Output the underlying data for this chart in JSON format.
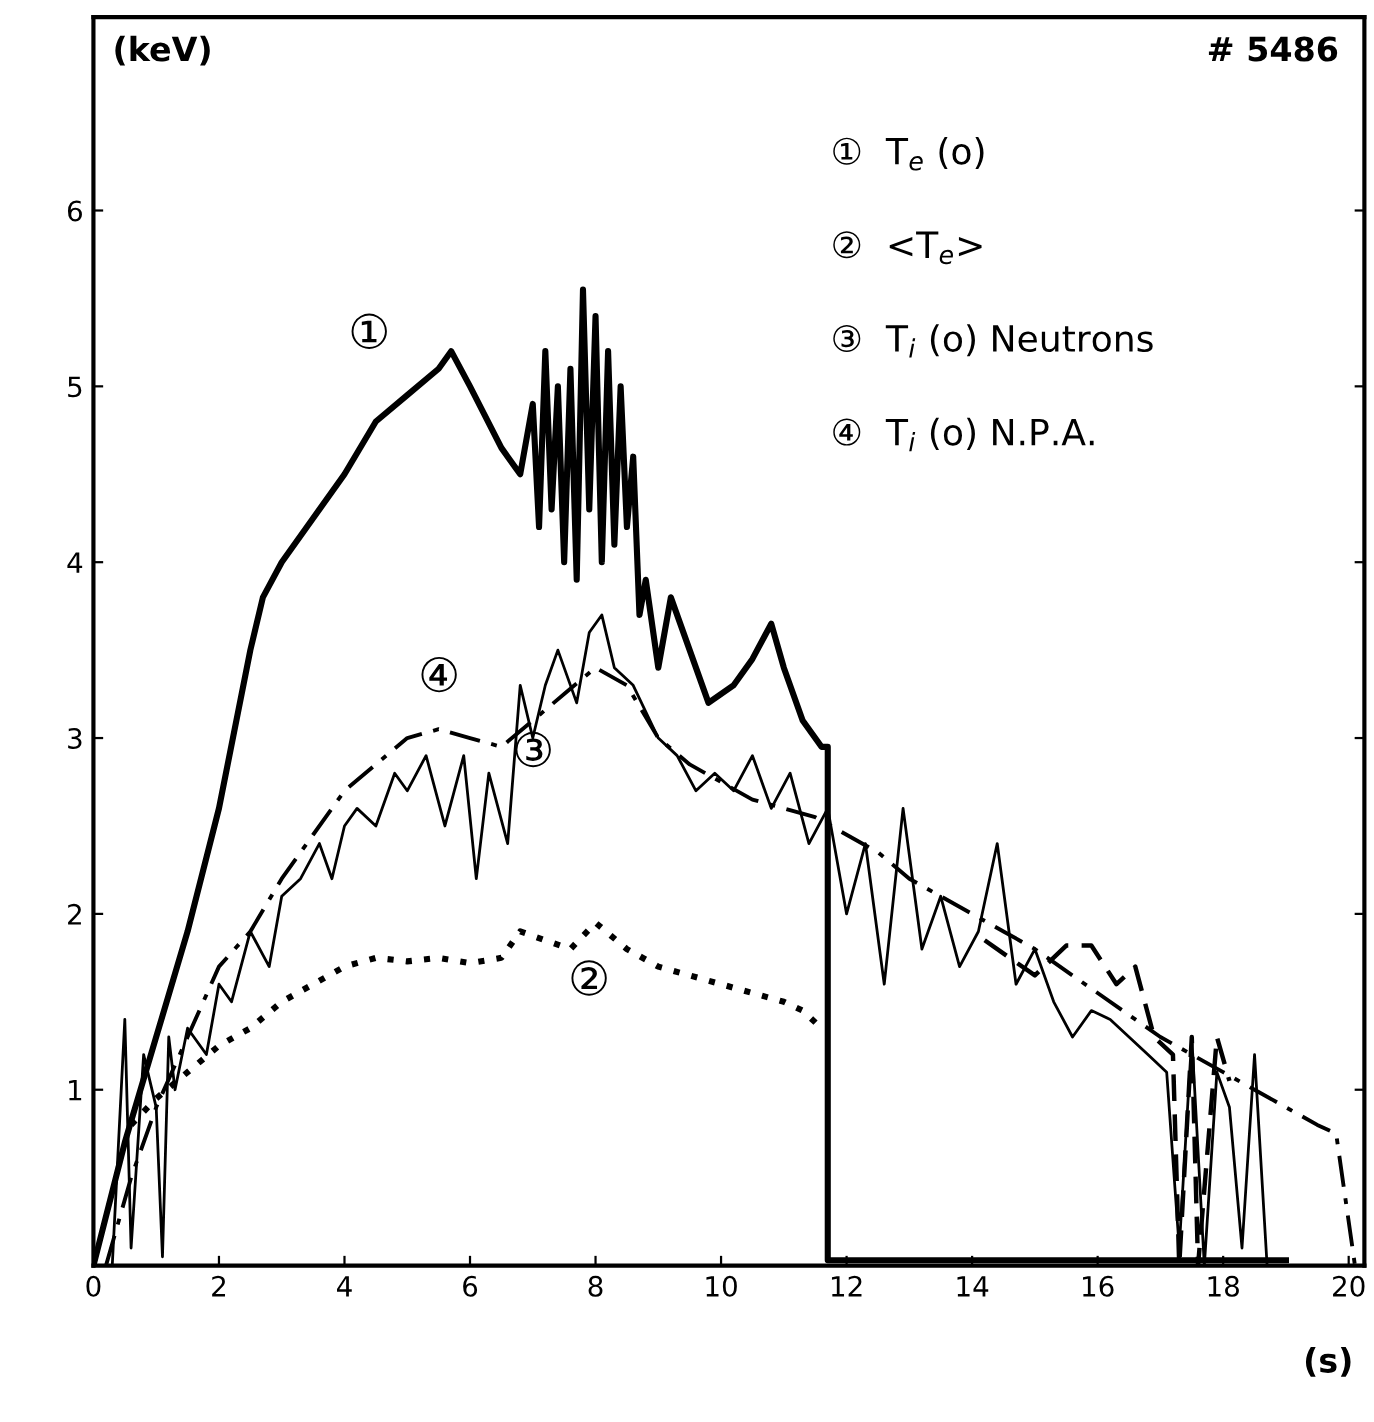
{
  "chart_data": {
    "type": "line",
    "series": [
      {
        "color": "#000000",
        "line_style": "solid",
        "x": [
          0,
          0.5,
          1,
          1.5,
          2,
          2.5,
          2.7,
          3,
          3.5,
          4,
          4.5,
          5,
          5.5,
          5.7,
          6,
          6.5,
          6.8,
          7,
          7.1,
          7.2,
          7.3,
          7.4,
          7.5,
          7.6,
          7.7,
          7.8,
          7.9,
          8.0,
          8.1,
          8.2,
          8.3,
          8.4,
          8.5,
          8.6,
          8.7,
          8.8,
          9.0,
          9.2,
          9.5,
          9.8,
          10.2,
          10.5,
          10.8,
          11.0,
          11.3,
          11.6,
          11.7,
          11.7,
          19
        ],
        "values": [
          0,
          0.7,
          1.3,
          1.9,
          2.6,
          3.5,
          3.8,
          4.0,
          4.25,
          4.5,
          4.8,
          4.95,
          5.1,
          5.2,
          5.0,
          4.65,
          4.5,
          4.9,
          4.2,
          5.2,
          4.3,
          5.0,
          4.0,
          5.1,
          3.9,
          5.55,
          4.3,
          5.4,
          4.0,
          5.2,
          4.1,
          5.0,
          4.2,
          4.6,
          3.7,
          3.9,
          3.4,
          3.8,
          3.5,
          3.2,
          3.3,
          3.45,
          3.65,
          3.4,
          3.1,
          2.95,
          2.95,
          0.03,
          0.03
        ]
      },
      {
        "color": "#000000",
        "line_style": "dotted",
        "x": [
          0.6,
          1,
          1.5,
          2,
          2.5,
          3,
          3.5,
          4,
          4.5,
          5,
          5.5,
          6,
          6.5,
          6.8,
          7.2,
          7.6,
          8,
          8.5,
          9,
          9.5,
          10,
          10.5,
          11,
          11.3,
          11.6
        ],
        "values": [
          0.8,
          0.95,
          1.1,
          1.25,
          1.35,
          1.5,
          1.6,
          1.7,
          1.75,
          1.73,
          1.75,
          1.72,
          1.75,
          1.9,
          1.85,
          1.8,
          1.95,
          1.8,
          1.7,
          1.65,
          1.6,
          1.55,
          1.5,
          1.45,
          1.35
        ]
      },
      {
        "color": "#000000",
        "line_style": "solid",
        "x": [
          0.3,
          0.5,
          0.6,
          0.8,
          1.0,
          1.1,
          1.2,
          1.3,
          1.5,
          1.8,
          2.0,
          2.2,
          2.5,
          2.8,
          3.0,
          3.3,
          3.6,
          3.8,
          4.0,
          4.2,
          4.5,
          4.8,
          5.0,
          5.3,
          5.6,
          5.9,
          6.1,
          6.3,
          6.6,
          6.8,
          7.0,
          7.2,
          7.4,
          7.7,
          7.9,
          8.1,
          8.3,
          8.6,
          9.0,
          9.3,
          9.6,
          9.9,
          10.2,
          10.5,
          10.8,
          11.1,
          11.4,
          11.7,
          12.0,
          12.3,
          12.6,
          12.9,
          13.2,
          13.5,
          13.8,
          14.1,
          14.4,
          14.7,
          15.0,
          15.3,
          15.6,
          15.9,
          16.2,
          16.5,
          16.8,
          17.1,
          17.3,
          17.5,
          17.7,
          17.9,
          18.1,
          18.3,
          18.5,
          18.7,
          18.9
        ],
        "values": [
          0,
          1.4,
          0.1,
          1.2,
          0.9,
          0.05,
          1.3,
          1.0,
          1.35,
          1.2,
          1.6,
          1.5,
          1.9,
          1.7,
          2.1,
          2.2,
          2.4,
          2.2,
          2.5,
          2.6,
          2.5,
          2.8,
          2.7,
          2.9,
          2.5,
          2.9,
          2.2,
          2.8,
          2.4,
          3.3,
          3.0,
          3.3,
          3.5,
          3.2,
          3.6,
          3.7,
          3.4,
          3.3,
          3.0,
          2.9,
          2.7,
          2.8,
          2.7,
          2.9,
          2.6,
          2.8,
          2.4,
          2.6,
          2.0,
          2.4,
          1.6,
          2.6,
          1.8,
          2.1,
          1.7,
          1.9,
          2.4,
          1.6,
          1.8,
          1.5,
          1.3,
          1.45,
          1.4,
          1.3,
          1.2,
          1.1,
          0.1,
          1.3,
          0.0,
          1.1,
          0.9,
          0.1,
          1.2,
          0.0,
          0.0
        ]
      },
      {
        "color": "#000000",
        "line_style": "dashdot",
        "x": [
          0.2,
          0.6,
          1.0,
          1.5,
          2,
          2.5,
          3,
          3.5,
          4,
          4.5,
          5,
          5.5,
          6,
          6.5,
          7,
          7.5,
          8,
          8.5,
          9,
          9.5,
          10,
          10.5,
          11,
          11.5,
          12,
          12.5,
          13,
          13.5,
          14,
          14.5,
          15,
          16,
          17,
          17.5,
          18,
          18.5,
          19,
          19.5,
          19.8,
          20.1
        ],
        "values": [
          0,
          0.5,
          0.9,
          1.3,
          1.7,
          1.9,
          2.2,
          2.45,
          2.7,
          2.85,
          3.0,
          3.05,
          3.0,
          2.95,
          3.1,
          3.25,
          3.4,
          3.3,
          3.0,
          2.85,
          2.75,
          2.65,
          2.6,
          2.55,
          2.45,
          2.35,
          2.2,
          2.1,
          2.0,
          1.9,
          1.8,
          1.55,
          1.3,
          1.2,
          1.1,
          1.0,
          0.9,
          0.8,
          0.75,
          0.0
        ]
      },
      {
        "color": "#000000",
        "line_style": "dashed",
        "x": [
          14.2,
          14.6,
          15.0,
          15.5,
          15.9,
          16.3,
          16.6,
          16.9,
          17.2,
          17.3,
          17.5,
          17.6,
          17.9,
          18.1
        ],
        "values": [
          1.85,
          1.75,
          1.65,
          1.82,
          1.82,
          1.6,
          1.7,
          1.3,
          1.2,
          0.0,
          1.3,
          0.0,
          1.3,
          1.05
        ]
      }
    ],
    "xlim": [
      0,
      20.25
    ],
    "ylim": [
      0,
      7.1
    ],
    "xticks": [
      0,
      2,
      4,
      6,
      8,
      10,
      12,
      14,
      16,
      18,
      20
    ],
    "yticks": [
      1,
      2,
      3,
      4,
      5,
      6
    ],
    "xlabel": "(s)",
    "ylabel": "(keV)",
    "title": "# 5486",
    "annotations": [
      "①",
      "④",
      "③",
      "②",
      "①  T$_{e}$ (o)",
      "②  <T$_{e}$>",
      "③  T$_{i}$ (o) Neutrons",
      "④  T$_{i}$ (o) N.P.A."
    ]
  }
}
